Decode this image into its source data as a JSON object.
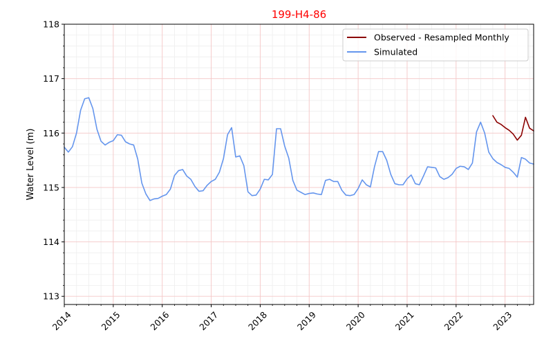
{
  "chart_data": {
    "type": "line",
    "title": "199-H4-86",
    "title_color": "#ff0000",
    "xlabel": "",
    "ylabel": "Water Level (m)",
    "ylim": [
      112.85,
      118
    ],
    "xlim": [
      "2014-01",
      "2023-08"
    ],
    "x_ticks": [
      "2014",
      "2015",
      "2016",
      "2017",
      "2018",
      "2019",
      "2020",
      "2021",
      "2022",
      "2023"
    ],
    "y_ticks": [
      "113",
      "114",
      "115",
      "116",
      "117",
      "118"
    ],
    "grid": true,
    "legend_position": "top-right",
    "series": [
      {
        "name": "Observed - Resampled Monthly",
        "color": "#8b0000",
        "x": [
          "2022-10",
          "2022-11",
          "2022-12",
          "2023-01",
          "2023-02",
          "2023-03",
          "2023-04",
          "2023-05",
          "2023-06",
          "2023-07",
          "2023-08"
        ],
        "y": [
          116.32,
          116.2,
          116.16,
          116.1,
          116.05,
          115.98,
          115.87,
          115.96,
          116.29,
          116.09,
          116.04
        ]
      },
      {
        "name": "Simulated",
        "color": "#6495ed",
        "x": [
          "2014-01",
          "2014-02",
          "2014-03",
          "2014-04",
          "2014-05",
          "2014-06",
          "2014-07",
          "2014-08",
          "2014-09",
          "2014-10",
          "2014-11",
          "2014-12",
          "2015-01",
          "2015-02",
          "2015-03",
          "2015-04",
          "2015-05",
          "2015-06",
          "2015-07",
          "2015-08",
          "2015-09",
          "2015-10",
          "2015-11",
          "2015-12",
          "2016-01",
          "2016-02",
          "2016-03",
          "2016-04",
          "2016-05",
          "2016-06",
          "2016-07",
          "2016-08",
          "2016-09",
          "2016-10",
          "2016-11",
          "2016-12",
          "2017-01",
          "2017-02",
          "2017-03",
          "2017-04",
          "2017-05",
          "2017-06",
          "2017-07",
          "2017-08",
          "2017-09",
          "2017-10",
          "2017-11",
          "2017-12",
          "2018-01",
          "2018-02",
          "2018-03",
          "2018-04",
          "2018-05",
          "2018-06",
          "2018-07",
          "2018-08",
          "2018-09",
          "2018-10",
          "2018-11",
          "2018-12",
          "2019-01",
          "2019-02",
          "2019-03",
          "2019-04",
          "2019-05",
          "2019-06",
          "2019-07",
          "2019-08",
          "2019-09",
          "2019-10",
          "2019-11",
          "2019-12",
          "2020-01",
          "2020-02",
          "2020-03",
          "2020-04",
          "2020-05",
          "2020-06",
          "2020-07",
          "2020-08",
          "2020-09",
          "2020-10",
          "2020-11",
          "2020-12",
          "2021-01",
          "2021-02",
          "2021-03",
          "2021-04",
          "2021-05",
          "2021-06",
          "2021-07",
          "2021-08",
          "2021-09",
          "2021-10",
          "2021-11",
          "2021-12",
          "2022-01",
          "2022-02",
          "2022-03",
          "2022-04",
          "2022-05",
          "2022-06",
          "2022-07",
          "2022-08",
          "2022-09",
          "2022-10",
          "2022-11",
          "2022-12",
          "2023-01",
          "2023-02",
          "2023-03",
          "2023-04",
          "2023-05",
          "2023-06",
          "2023-07",
          "2023-08"
        ],
        "y": [
          115.74,
          115.65,
          115.75,
          116.0,
          116.42,
          116.63,
          116.65,
          116.45,
          116.07,
          115.85,
          115.78,
          115.83,
          115.86,
          115.97,
          115.96,
          115.84,
          115.8,
          115.78,
          115.52,
          115.08,
          114.88,
          114.76,
          114.79,
          114.8,
          114.84,
          114.87,
          114.97,
          115.22,
          115.31,
          115.33,
          115.21,
          115.15,
          115.02,
          114.93,
          114.94,
          115.04,
          115.11,
          115.15,
          115.28,
          115.53,
          115.97,
          116.1,
          115.56,
          115.58,
          115.4,
          114.92,
          114.85,
          114.86,
          114.97,
          115.15,
          115.14,
          115.24,
          116.08,
          116.08,
          115.76,
          115.54,
          115.13,
          114.95,
          114.91,
          114.87,
          114.89,
          114.9,
          114.88,
          114.87,
          115.13,
          115.15,
          115.11,
          115.11,
          114.95,
          114.86,
          114.85,
          114.87,
          114.98,
          115.14,
          115.05,
          115.01,
          115.38,
          115.66,
          115.66,
          115.5,
          115.24,
          115.07,
          115.05,
          115.05,
          115.16,
          115.23,
          115.07,
          115.05,
          115.21,
          115.38,
          115.37,
          115.36,
          115.2,
          115.15,
          115.18,
          115.24,
          115.35,
          115.39,
          115.38,
          115.33,
          115.45,
          116.02,
          116.2,
          116.0,
          115.65,
          115.53,
          115.46,
          115.42,
          115.37,
          115.35,
          115.28,
          115.19,
          115.55,
          115.52,
          115.45,
          115.43
        ]
      }
    ]
  }
}
